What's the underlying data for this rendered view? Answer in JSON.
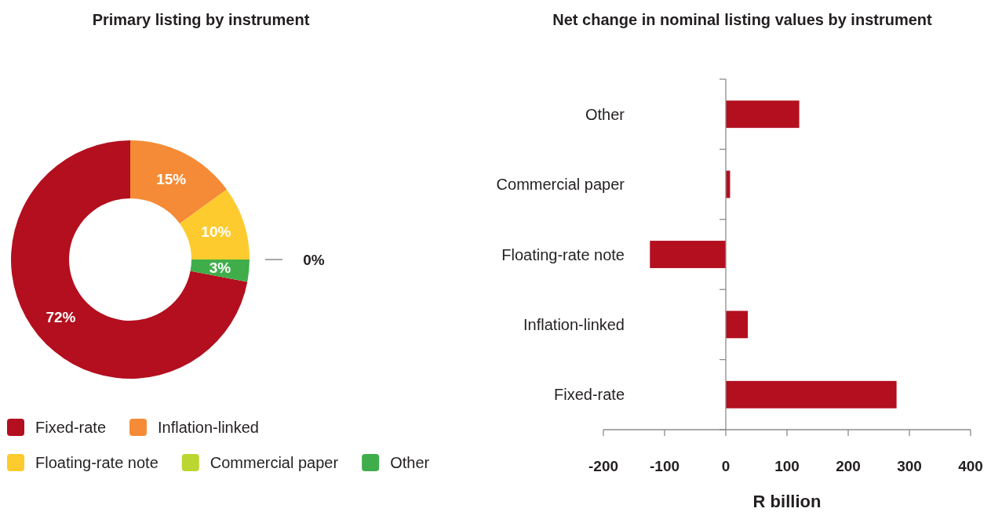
{
  "chart_data": [
    {
      "type": "donut",
      "title": "Primary listing by instrument",
      "categories": [
        "Fixed-rate",
        "Inflation-linked",
        "Floating-rate note",
        "Commercial paper",
        "Other"
      ],
      "values": [
        72,
        15,
        10,
        0,
        3
      ],
      "colors": [
        "#b30f1f",
        "#f58b36",
        "#fecb2e",
        "#bcd631",
        "#3fae4a"
      ],
      "value_labels": [
        "72%",
        "15%",
        "10%",
        "0%",
        "3%"
      ],
      "legend": "bottom"
    },
    {
      "type": "bar",
      "orientation": "horizontal",
      "title": "Net change in nominal listing values by instrument",
      "categories": [
        "Other",
        "Commercial paper",
        "Floating-rate note",
        "Inflation-linked",
        "Fixed-rate"
      ],
      "values": [
        120,
        7,
        -124,
        36,
        279
      ],
      "color": "#b30f1f",
      "xlim": [
        -200,
        400
      ],
      "xticks": [
        -200,
        -100,
        0,
        100,
        200,
        300,
        400
      ],
      "xlabel": "R billion"
    }
  ]
}
